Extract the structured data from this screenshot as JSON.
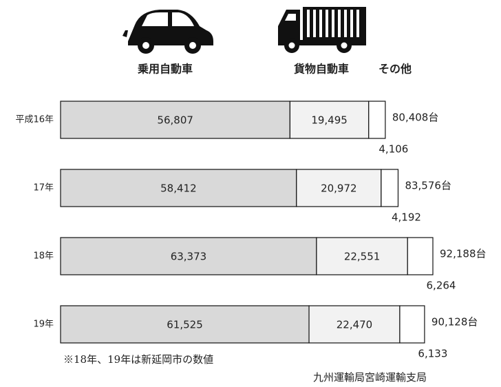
{
  "chart_data": {
    "type": "stacked_bar",
    "categories": [
      "平成16年",
      "17年",
      "18年",
      "19年"
    ],
    "series": [
      {
        "name": "乗用自動車",
        "color": "#d9d9d9",
        "values": [
          56807,
          58412,
          63373,
          61525
        ],
        "value_labels": [
          "56,807",
          "58,412",
          "63,373",
          "61,525"
        ]
      },
      {
        "name": "貨物自動車",
        "color": "#f2f2f2",
        "values": [
          19495,
          20972,
          22551,
          22470
        ],
        "value_labels": [
          "19,495",
          "20,972",
          "22,551",
          "22,470"
        ]
      },
      {
        "name": "その他",
        "color": "#ffffff",
        "values": [
          4106,
          4192,
          6264,
          6133
        ],
        "value_labels": [
          "4,106",
          "4,192",
          "6,264",
          "6,133"
        ]
      }
    ],
    "totals": [
      80408,
      83576,
      92188,
      90128
    ],
    "total_labels": [
      "80,408台",
      "83,576台",
      "92,188台",
      "90,128台"
    ],
    "note": "※18年、19年は新延岡市の数値",
    "source": "九州運輸局宮崎運輸支局"
  }
}
